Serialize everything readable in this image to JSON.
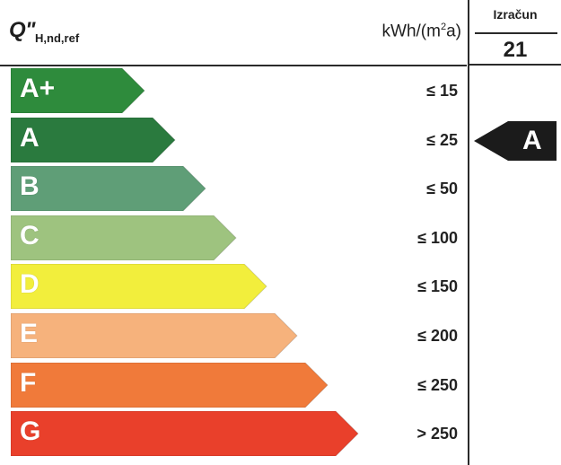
{
  "header": {
    "q_main": "Q\"",
    "q_sub": "H,nd,ref",
    "unit_prefix": "kWh/(m",
    "unit_sup": "2",
    "unit_suffix": "a)"
  },
  "calc": {
    "title": "Izračun",
    "value": "21"
  },
  "classes": [
    {
      "letter": "A+",
      "limit": "≤ 15",
      "color": "#2e8b3c"
    },
    {
      "letter": "A",
      "limit": "≤ 25",
      "color": "#2a7a3e"
    },
    {
      "letter": "B",
      "limit": "≤ 50",
      "color": "#5f9e77"
    },
    {
      "letter": "C",
      "limit": "≤ 100",
      "color": "#9ec37f"
    },
    {
      "letter": "D",
      "limit": "≤ 150",
      "color": "#f2ee3c"
    },
    {
      "letter": "E",
      "limit": "≤ 200",
      "color": "#f6b27c"
    },
    {
      "letter": "F",
      "limit": "≤ 250",
      "color": "#f07a3a"
    },
    {
      "letter": "G",
      "limit": "> 250",
      "color": "#e9402b"
    }
  ],
  "current_class": {
    "letter": "A",
    "row_index": 1,
    "color": "#1b1b1b"
  }
}
